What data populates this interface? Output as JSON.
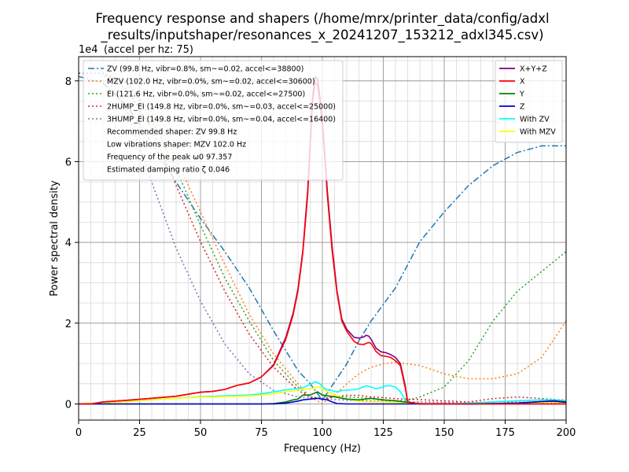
{
  "chart_data": {
    "type": "line",
    "title_lines": [
      "Frequency response and shapers (/home/mrx/printer_data/config/adxl",
      "_results/inputshaper/resonances_x_20241207_153212_adxl345.csv)"
    ],
    "xlabel": "Frequency (Hz)",
    "ylabel": "Power spectral density",
    "y_offset_text": "1e4",
    "y_scale_note": "(accel per hz: 75)",
    "xlim": [
      0,
      200
    ],
    "ylim": [
      -0.4,
      8.6
    ],
    "y2lim": [
      -0.05,
      1.05
    ],
    "x_ticks": [
      0,
      25,
      50,
      75,
      100,
      125,
      150,
      175,
      200
    ],
    "y_ticks": [
      0,
      2,
      4,
      6,
      8
    ],
    "grid": true,
    "legend_left_position": "upper-left",
    "legend_right_position": "upper-right",
    "psd_series": [
      {
        "name": "X+Y+Z",
        "color": "#800080",
        "x": [
          0,
          5,
          10,
          20,
          30,
          40,
          50,
          55,
          60,
          65,
          70,
          75,
          80,
          85,
          88,
          90,
          92,
          94,
          95,
          96,
          97,
          98,
          99,
          100,
          101,
          102,
          104,
          106,
          108,
          110,
          113,
          115,
          117,
          118,
          119,
          120,
          122,
          124,
          126,
          128,
          130,
          132,
          134,
          135,
          140,
          150,
          160,
          170,
          180,
          190,
          200
        ],
        "y": [
          0,
          0,
          0.05,
          0.09,
          0.14,
          0.19,
          0.29,
          0.31,
          0.36,
          0.46,
          0.52,
          0.67,
          0.97,
          1.65,
          2.25,
          2.85,
          3.8,
          5.3,
          6.5,
          7.6,
          8.1,
          8.05,
          7.6,
          7.0,
          6.2,
          5.3,
          3.9,
          2.8,
          2.1,
          1.85,
          1.65,
          1.63,
          1.66,
          1.7,
          1.68,
          1.6,
          1.38,
          1.29,
          1.27,
          1.22,
          1.15,
          1.0,
          0.45,
          0.05,
          0,
          0,
          0,
          0,
          0,
          0,
          0
        ]
      },
      {
        "name": "X",
        "color": "#ff0000",
        "x": [
          0,
          5,
          10,
          20,
          30,
          40,
          50,
          55,
          60,
          65,
          70,
          75,
          80,
          85,
          88,
          90,
          92,
          94,
          95,
          96,
          97,
          98,
          99,
          100,
          101,
          102,
          104,
          106,
          108,
          110,
          113,
          115,
          117,
          118,
          119,
          120,
          122,
          124,
          126,
          128,
          130,
          132,
          134,
          135,
          140,
          150,
          160,
          170,
          180,
          190,
          200
        ],
        "y": [
          0,
          0,
          0.05,
          0.09,
          0.14,
          0.19,
          0.29,
          0.31,
          0.36,
          0.46,
          0.52,
          0.67,
          0.95,
          1.6,
          2.2,
          2.8,
          3.75,
          5.2,
          6.4,
          7.5,
          7.95,
          7.9,
          7.5,
          6.9,
          6.1,
          5.2,
          3.8,
          2.75,
          2.05,
          1.8,
          1.55,
          1.48,
          1.47,
          1.5,
          1.52,
          1.5,
          1.3,
          1.2,
          1.18,
          1.15,
          1.07,
          0.95,
          0.4,
          0.05,
          0,
          0,
          0,
          0,
          0,
          0,
          0
        ]
      },
      {
        "name": "Y",
        "color": "#008000",
        "x": [
          0,
          20,
          60,
          75,
          80,
          85,
          88,
          90,
          92,
          95,
          98,
          100,
          102,
          105,
          108,
          110,
          115,
          120,
          125,
          130,
          135,
          140,
          160,
          180,
          190,
          195,
          200
        ],
        "y": [
          0,
          0,
          0,
          0,
          0.01,
          0.05,
          0.1,
          0.12,
          0.22,
          0.22,
          0.3,
          0.22,
          0.2,
          0.18,
          0.14,
          0.12,
          0.1,
          0.14,
          0.1,
          0.08,
          0.04,
          0.01,
          0,
          0.02,
          0.06,
          0.08,
          0.05
        ]
      },
      {
        "name": "Z",
        "color": "#0000cc",
        "x": [
          0,
          10,
          50,
          70,
          80,
          85,
          88,
          90,
          92,
          95,
          98,
          100,
          102,
          104,
          106,
          110,
          120,
          130,
          140,
          160,
          180,
          190,
          195,
          200
        ],
        "y": [
          0,
          0,
          0,
          0,
          0,
          0.02,
          0.05,
          0.07,
          0.1,
          0.12,
          0.14,
          0.12,
          0.1,
          0.05,
          0.01,
          0,
          0,
          0,
          0,
          0,
          0.02,
          0.06,
          0.07,
          0.04
        ]
      },
      {
        "name": "With ZV",
        "color": "#00ffff",
        "x": [
          0,
          10,
          20,
          30,
          40,
          50,
          60,
          65,
          70,
          75,
          80,
          85,
          88,
          90,
          92,
          95,
          97,
          99,
          100,
          102,
          104,
          106,
          108,
          110,
          112,
          114,
          116,
          118,
          120,
          122,
          124,
          126,
          128,
          130,
          132,
          134,
          136,
          140,
          150,
          160,
          170,
          180,
          190,
          195,
          200
        ],
        "y": [
          0,
          0.03,
          0.06,
          0.1,
          0.14,
          0.18,
          0.2,
          0.21,
          0.22,
          0.25,
          0.3,
          0.35,
          0.37,
          0.38,
          0.4,
          0.48,
          0.55,
          0.5,
          0.42,
          0.35,
          0.33,
          0.3,
          0.33,
          0.34,
          0.35,
          0.36,
          0.4,
          0.45,
          0.42,
          0.38,
          0.4,
          0.45,
          0.45,
          0.42,
          0.3,
          0.1,
          0.03,
          0.01,
          0,
          0.02,
          0.05,
          0.08,
          0.1,
          0.1,
          0.08
        ]
      },
      {
        "name": "With MZV",
        "color": "#ffff00",
        "x": [
          0,
          10,
          20,
          30,
          40,
          50,
          60,
          65,
          70,
          75,
          80,
          85,
          88,
          90,
          92,
          95,
          97,
          99,
          100,
          102,
          104,
          106,
          108,
          110,
          112,
          114,
          116,
          118,
          120,
          125,
          130,
          134,
          136,
          140,
          150,
          160,
          170,
          180,
          190,
          195,
          200
        ],
        "y": [
          0,
          0.03,
          0.06,
          0.1,
          0.14,
          0.17,
          0.18,
          0.19,
          0.2,
          0.22,
          0.25,
          0.3,
          0.32,
          0.34,
          0.36,
          0.38,
          0.4,
          0.42,
          0.38,
          0.3,
          0.25,
          0.2,
          0.15,
          0.12,
          0.1,
          0.08,
          0.06,
          0.05,
          0.05,
          0.05,
          0.04,
          0.02,
          0.01,
          0,
          0,
          0,
          0,
          0.02,
          0.04,
          0.05,
          0.03
        ]
      }
    ],
    "shaper_series": [
      {
        "name": "ZV (99.8 Hz, vibr=0.8%, sm~=0.02, accel<=38800)",
        "color": "#1f77b4",
        "dash": "8 3 2 3",
        "x": [
          0,
          10,
          20,
          30,
          40,
          50,
          60,
          70,
          80,
          90,
          95,
          100,
          105,
          110,
          115,
          120,
          130,
          140,
          150,
          160,
          170,
          180,
          190,
          200
        ],
        "y": [
          0.99,
          0.97,
          0.9,
          0.79,
          0.67,
          0.56,
          0.46,
          0.35,
          0.22,
          0.1,
          0.06,
          0.01,
          0.065,
          0.12,
          0.19,
          0.25,
          0.35,
          0.49,
          0.58,
          0.66,
          0.72,
          0.76,
          0.78,
          0.78
        ]
      },
      {
        "name": "MZV (102.0 Hz, vibr=0.0%, sm~=0.02, accel<=30600)",
        "color": "#ff7f0e",
        "dash": "2 3",
        "x": [
          0,
          10,
          20,
          30,
          40,
          50,
          60,
          70,
          80,
          90,
          95,
          100,
          105,
          110,
          115,
          120,
          125,
          130,
          140,
          150,
          160,
          170,
          180,
          190,
          200
        ],
        "y": [
          1,
          1,
          0.97,
          0.88,
          0.74,
          0.58,
          0.42,
          0.27,
          0.15,
          0.06,
          0.02,
          0.0,
          0.025,
          0.06,
          0.09,
          0.11,
          0.12,
          0.125,
          0.115,
          0.09,
          0.075,
          0.075,
          0.09,
          0.14,
          0.25
        ]
      },
      {
        "name": "EI (121.6 Hz, vibr=0.0%, sm~=0.02, accel<=27500)",
        "color": "#2ca02c",
        "dash": "2 3",
        "x": [
          0,
          10,
          20,
          30,
          40,
          50,
          60,
          70,
          80,
          90,
          95,
          100,
          105,
          110,
          115,
          120,
          125,
          130,
          135,
          140,
          150,
          160,
          170,
          180,
          190,
          200
        ],
        "y": [
          1,
          1,
          0.97,
          0.86,
          0.71,
          0.54,
          0.38,
          0.25,
          0.13,
          0.05,
          0.02,
          0.015,
          0.02,
          0.02,
          0.018,
          0.015,
          0.01,
          0.008,
          0.01,
          0.02,
          0.05,
          0.13,
          0.25,
          0.34,
          0.4,
          0.46
        ]
      },
      {
        "name": "2HUMP_EI (149.8 Hz, vibr=0.0%, sm~=0.03, accel<=25000)",
        "color": "#d62728",
        "dash": "2 3",
        "x": [
          0,
          10,
          20,
          30,
          40,
          50,
          60,
          70,
          80,
          90,
          95,
          100,
          105,
          110,
          115,
          120,
          125,
          130,
          140,
          150,
          160,
          170,
          180,
          190,
          200
        ],
        "y": [
          1,
          1,
          0.95,
          0.83,
          0.66,
          0.49,
          0.34,
          0.21,
          0.11,
          0.04,
          0.02,
          0.015,
          0.02,
          0.025,
          0.025,
          0.02,
          0.018,
          0.015,
          0.012,
          0.008,
          0.005,
          0.015,
          0.02,
          0.015,
          0.01
        ]
      },
      {
        "name": "3HUMP_EI (149.8 Hz, vibr=0.0%, sm~=0.04, accel<=16400)",
        "color": "#9467bd",
        "dash": "2 3",
        "x": [
          0,
          10,
          20,
          30,
          40,
          50,
          60,
          70,
          80,
          90,
          100,
          110,
          120,
          130,
          140,
          150,
          160,
          170,
          180,
          190,
          200
        ],
        "y": [
          1,
          1,
          0.88,
          0.67,
          0.47,
          0.31,
          0.18,
          0.09,
          0.04,
          0.02,
          0.015,
          0.01,
          0.008,
          0.005,
          0.005,
          0.003,
          0.003,
          0.005,
          0.005,
          0.003,
          0.002
        ]
      }
    ],
    "legend_notes": [
      "Recommended shaper: ZV 99.8 Hz",
      "Low vibrations shaper: MZV 102.0 Hz",
      "Frequency of the peak ω0 97.357",
      "Estimated damping ratio ζ 0.046"
    ]
  }
}
